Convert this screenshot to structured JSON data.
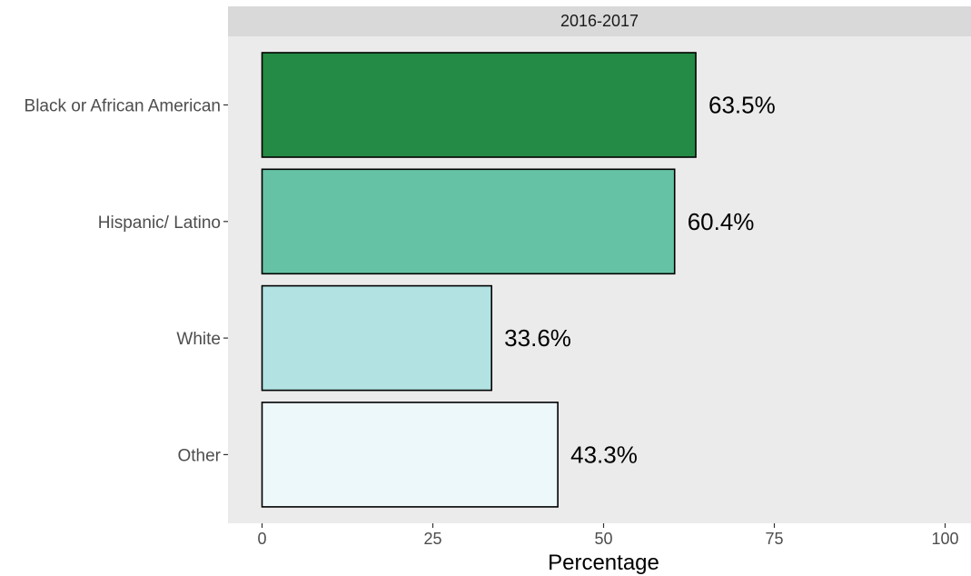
{
  "chart_data": {
    "type": "bar",
    "orientation": "horizontal",
    "facet_label": "2016-2017",
    "categories": [
      "Black or African American",
      "Hispanic/ Latino",
      "White",
      "Other"
    ],
    "values": [
      63.5,
      60.4,
      33.6,
      43.3
    ],
    "data_labels": [
      "63.5%",
      "60.4%",
      "33.6%",
      "43.3%"
    ],
    "colors": [
      "#238b45",
      "#66c2a4",
      "#b2e2e2",
      "#edf8fb"
    ],
    "xlabel": "Percentage",
    "ylabel": "",
    "xlim": [
      0,
      100
    ],
    "x_ticks": [
      0,
      25,
      50,
      75,
      100
    ],
    "x_tick_labels": [
      "0",
      "25",
      "50",
      "75",
      "100"
    ],
    "grid": false,
    "panel_background": "#ebebeb",
    "strip_background": "#d9d9d9",
    "bar_outline": "#000000"
  }
}
